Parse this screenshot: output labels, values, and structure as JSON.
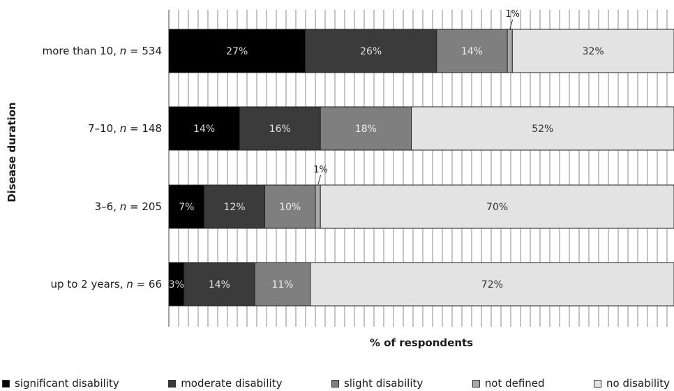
{
  "chart_data": {
    "type": "bar",
    "orientation": "horizontal",
    "stacked": true,
    "xlabel": "% of respondents",
    "ylabel": "Disease duration",
    "xlim": [
      0,
      100
    ],
    "grid": true,
    "legend_position": "bottom",
    "categories": [
      {
        "pre": "more than 10, ",
        "n": "n",
        "post": " = 534"
      },
      {
        "pre": "7–10, ",
        "n": "n",
        "post": " = 148"
      },
      {
        "pre": "3–6, ",
        "n": "n",
        "post": " = 205"
      },
      {
        "pre": "up to 2 years, ",
        "n": "n",
        "post": " = 66"
      }
    ],
    "series": [
      {
        "name": "significant disability",
        "color": "#000000",
        "text_color": "#d9d9d9",
        "values": [
          27,
          14,
          7,
          3
        ],
        "labels": [
          "27%",
          "14%",
          "7%",
          "3%"
        ]
      },
      {
        "name": "moderate disability",
        "color": "#3b3b3b",
        "text_color": "#e0e0e0",
        "values": [
          26,
          16,
          12,
          14
        ],
        "labels": [
          "26%",
          "16%",
          "12%",
          "14%"
        ]
      },
      {
        "name": "slight disability",
        "color": "#7f7f7f",
        "text_color": "#eeeeee",
        "values": [
          14,
          18,
          10,
          11
        ],
        "labels": [
          "14%",
          "18%",
          "10%",
          "11%"
        ]
      },
      {
        "name": "not defined",
        "color": "#a8a8a8",
        "text_color": "#1a1a1a",
        "values": [
          1,
          0,
          1,
          0
        ],
        "labels": [
          "1%",
          "",
          "1%",
          ""
        ]
      },
      {
        "name": "no disability",
        "color": "#e3e3e3",
        "text_color": "#333333",
        "values": [
          32,
          52,
          70,
          72
        ],
        "labels": [
          "32%",
          "52%",
          "70%",
          "72%"
        ]
      }
    ]
  }
}
